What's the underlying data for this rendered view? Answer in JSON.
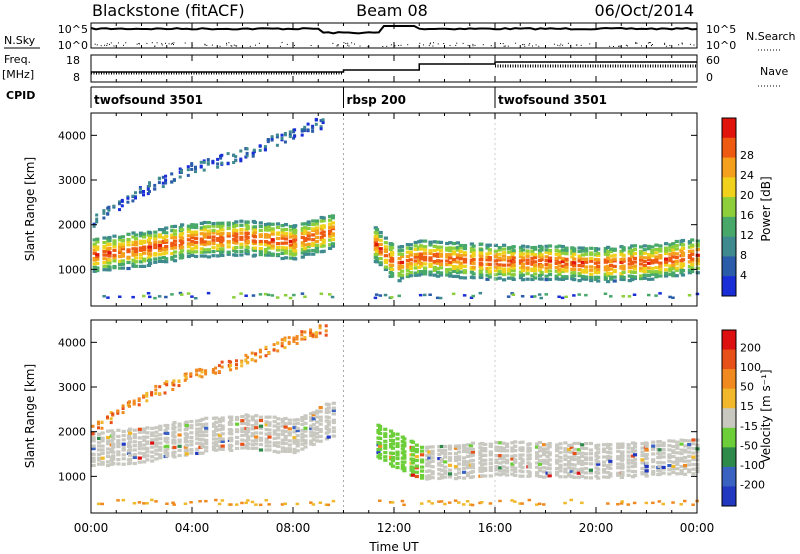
{
  "header": {
    "station": "Blackstone (fitACF)",
    "beam": "Beam 08",
    "date": "06/Oct/2014"
  },
  "top_panels": {
    "nsky_label": "N.Sky",
    "nsky_ticks": [
      "10^5",
      "10^0"
    ],
    "nsearch_label": "N.Search",
    "nsearch_ticks": [
      "10^5",
      "10^0"
    ],
    "freq_label": "Freq.",
    "freq_unit": "[MHz]",
    "freq_ticks": [
      "18",
      "8"
    ],
    "nave_label": "Nave",
    "nave_ticks": [
      "60",
      "0"
    ],
    "cpid_label": "CPID",
    "cpid_segments": [
      {
        "label": "twofsound 3501",
        "start_h": 0,
        "end_h": 10
      },
      {
        "label": "rbsp 200",
        "start_h": 10,
        "end_h": 16
      },
      {
        "label": "twofsound 3501",
        "start_h": 16,
        "end_h": 24
      }
    ]
  },
  "chart_data": [
    {
      "type": "heatmap",
      "title": "",
      "xlabel": "",
      "ylabel": "Slant Range [km]",
      "xlim_hours": [
        0,
        24
      ],
      "ylim_km": [
        180,
        4500
      ],
      "yticks": [
        "1000",
        "2000",
        "3000",
        "4000"
      ],
      "colorbar_label": "Power [dB]",
      "colorbar_ticks": [
        "4",
        "8",
        "12",
        "16",
        "20",
        "24",
        "28"
      ],
      "colorbar_colors": [
        "#1a2ed8",
        "#2a5caa",
        "#3f8a8f",
        "#48a86a",
        "#8ccf3a",
        "#f0d21c",
        "#f5a01c",
        "#ee5a12",
        "#e0140c"
      ],
      "bands": [
        {
          "name": "main echo band",
          "x": [
            0,
            2,
            4,
            6,
            8,
            9.5,
            11.2,
            12,
            13,
            16,
            18,
            20,
            22,
            24
          ],
          "y": [
            1350,
            1500,
            1700,
            1750,
            1650,
            1900,
            1600,
            1150,
            1300,
            1200,
            1200,
            1150,
            1200,
            1350
          ]
        },
        {
          "name": "upper slant echoes",
          "x": [
            0,
            2,
            4,
            6,
            8,
            9
          ],
          "y": [
            2100,
            2800,
            3300,
            3600,
            4100,
            4300
          ]
        }
      ]
    },
    {
      "type": "heatmap",
      "title": "",
      "xlabel": "Time UT",
      "ylabel": "Slant Range [km]",
      "xlim_hours": [
        0,
        24
      ],
      "ylim_km": [
        180,
        4500
      ],
      "xticks": [
        "00:00",
        "04:00",
        "08:00",
        "12:00",
        "16:00",
        "20:00",
        "00:00"
      ],
      "yticks": [
        "1000",
        "2000",
        "3000",
        "4000"
      ],
      "colorbar_label": "Velocity [m s⁻¹]",
      "colorbar_ticks": [
        "200",
        "100",
        "50",
        "15",
        "-15",
        "-50",
        "-100",
        "-200"
      ],
      "colorbar_colors": [
        "#2238c0",
        "#3a62c0",
        "#2e8a4a",
        "#6ccf3a",
        "#c8c8c0",
        "#f0b82a",
        "#f08a20",
        "#e8501a",
        "#dc1010"
      ],
      "bands": [
        {
          "name": "ground scatter band",
          "x": [
            0,
            2,
            4,
            6,
            8,
            9.5,
            13,
            16,
            20,
            24
          ],
          "y": [
            1600,
            1700,
            1900,
            2000,
            1900,
            2300,
            1300,
            1400,
            1350,
            1450
          ]
        }
      ]
    }
  ]
}
